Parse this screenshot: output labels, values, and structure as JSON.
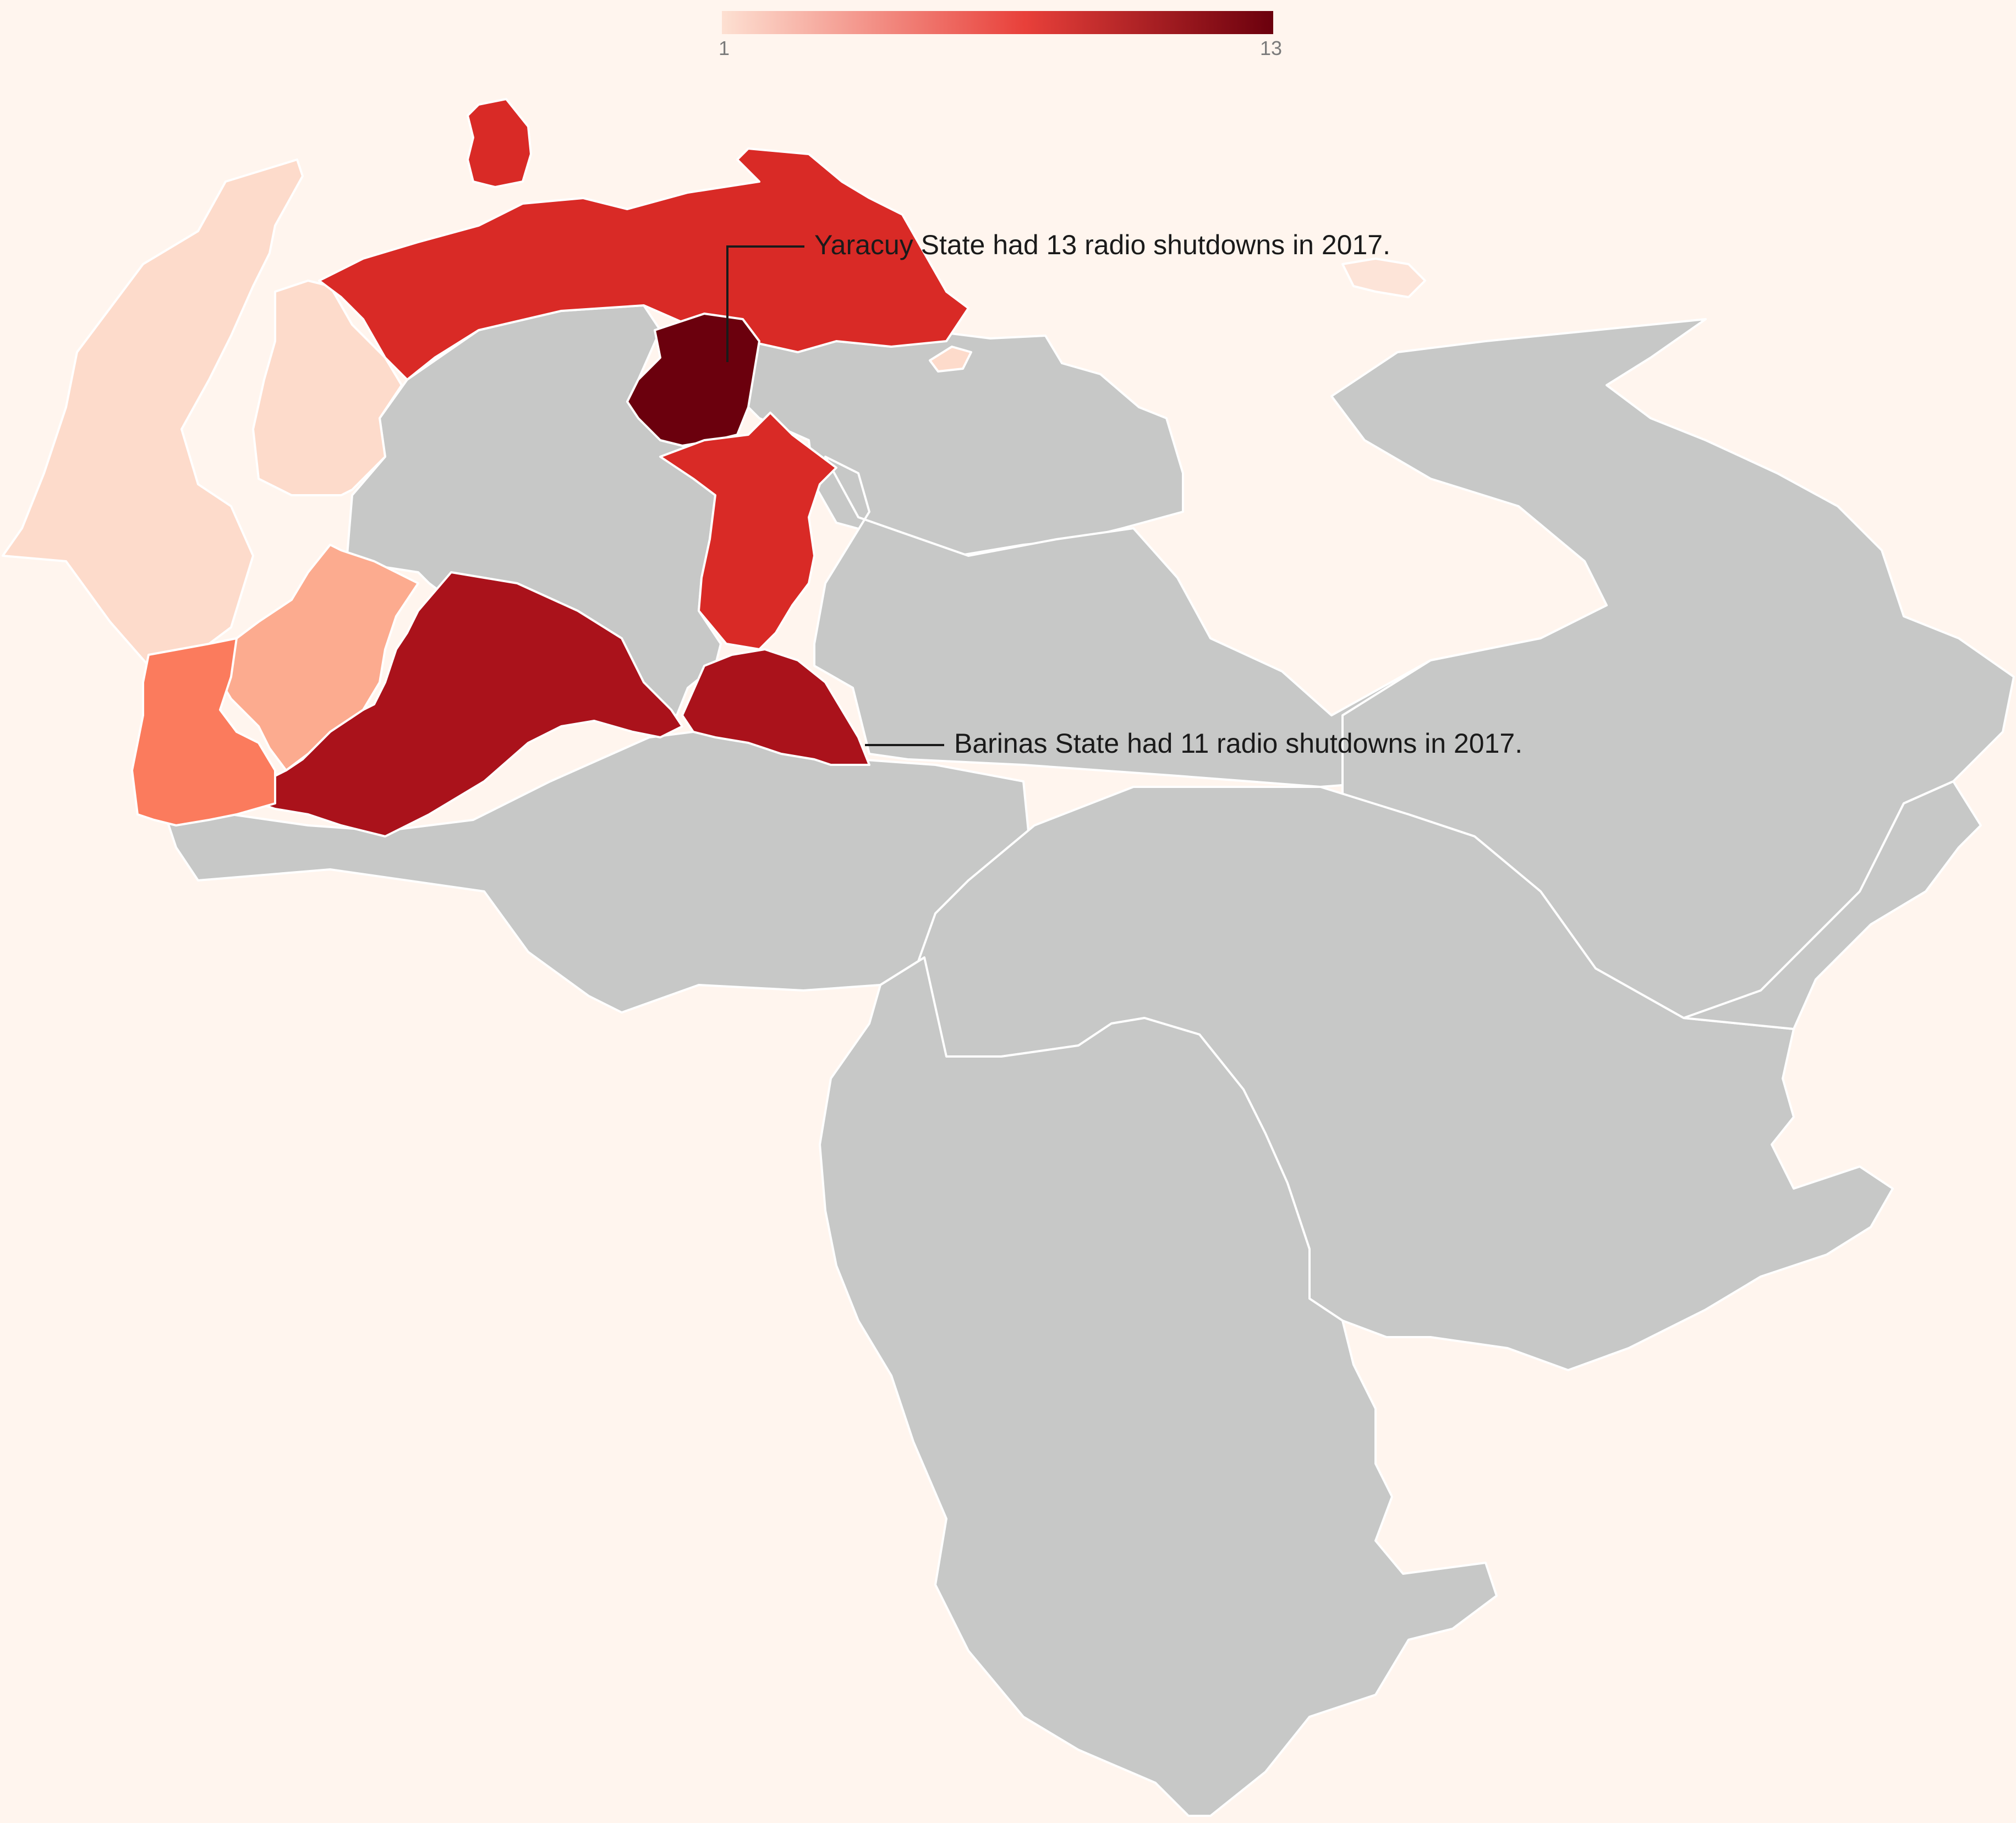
{
  "legend": {
    "min_label": "1",
    "max_label": "13",
    "min_value": 1,
    "max_value": 13,
    "color_low": "#fde0d2",
    "color_mid": "#e8403a",
    "color_high": "#6b000d"
  },
  "colors": {
    "background": "#fff5ee",
    "no_data": "#c7c8c7",
    "border": "#ffffff"
  },
  "chart_data": {
    "type": "choropleth",
    "title": "",
    "metric": "radio shutdowns in 2017",
    "color_scale": [
      1,
      13
    ],
    "regions": [
      {
        "id": "yaracuy",
        "value": 13,
        "color": "#6b000d"
      },
      {
        "id": "barinas-east",
        "value": 11,
        "color": "#aa121b"
      },
      {
        "id": "barinas-west",
        "value": 11,
        "color": "#aa121b"
      },
      {
        "id": "falcon",
        "value": 9,
        "color": "#d92a26"
      },
      {
        "id": "aruba",
        "value": 9,
        "color": "#d92a26"
      },
      {
        "id": "cojedes",
        "value": 9,
        "color": "#d92a26"
      },
      {
        "id": "tachira",
        "value": 6,
        "color": "#fb7b5d"
      },
      {
        "id": "merida",
        "value": 4,
        "color": "#fcab8f"
      },
      {
        "id": "zulia-west",
        "value": 2,
        "color": "#fddbcb"
      },
      {
        "id": "zulia-east",
        "value": 2,
        "color": "#fddbcb"
      },
      {
        "id": "caracas",
        "value": 2,
        "color": "#fddbcb"
      },
      {
        "id": "margarita",
        "value": 1,
        "color": "#fde4d8"
      }
    ],
    "annotations": [
      {
        "id": "yaracuy",
        "text": "Yaracuy State had 13 radio shutdowns in 2017."
      },
      {
        "id": "barinas",
        "text": "Barinas State had 11 radio shutdowns in 2017."
      }
    ]
  }
}
